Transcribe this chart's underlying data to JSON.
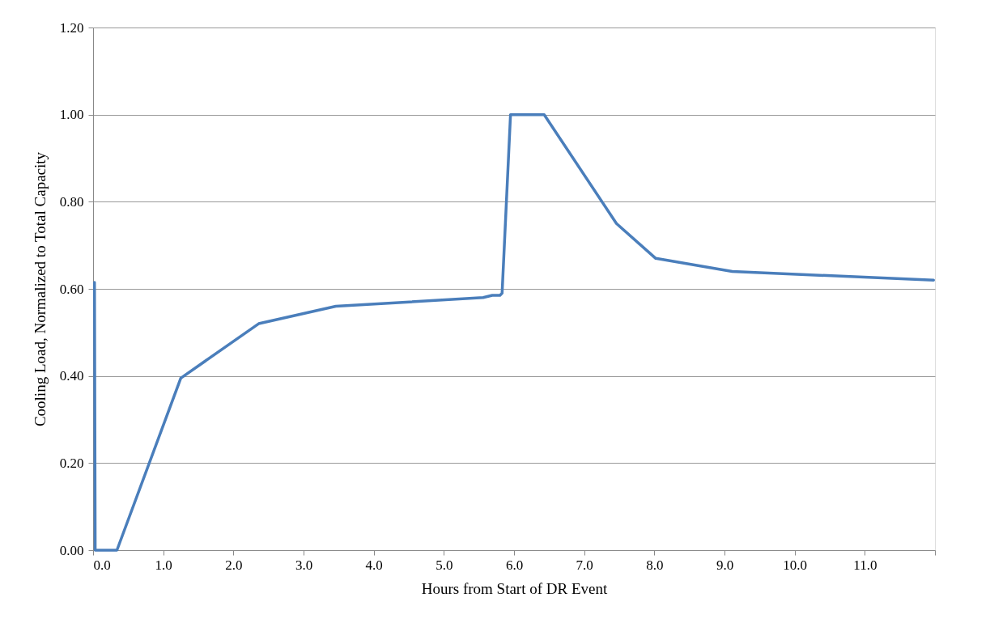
{
  "chart_data": {
    "type": "line",
    "xlabel": "Hours from Start of DR Event",
    "ylabel": "Cooling Load, Normalized to Total Capacity",
    "x": [
      0.02,
      0.03,
      0.1,
      0.2,
      0.34,
      1.25,
      2.36,
      3.46,
      5.56,
      5.69,
      5.8,
      5.83,
      5.95,
      6.0,
      6.05,
      6.43,
      7.46,
      8.02,
      9.11,
      11.98
    ],
    "series": [
      {
        "color": "#4a7ebb",
        "values": [
          0.615,
          0,
          0,
          0,
          0,
          0.395,
          0.52,
          0.56,
          0.58,
          0.585,
          0.585,
          0.59,
          1.0,
          1.0,
          1.0,
          1.0,
          0.75,
          0.67,
          0.64,
          0.62
        ]
      }
    ],
    "xlim": [
      0,
      12
    ],
    "ylim": [
      0,
      1.2
    ],
    "xticks": [
      {
        "value": 0,
        "label": "0.0"
      },
      {
        "value": 1,
        "label": "1.0"
      },
      {
        "value": 2,
        "label": "2.0"
      },
      {
        "value": 3,
        "label": "3.0"
      },
      {
        "value": 4,
        "label": "4.0"
      },
      {
        "value": 5,
        "label": "5.0"
      },
      {
        "value": 6,
        "label": "6.0"
      },
      {
        "value": 7,
        "label": "7.0"
      },
      {
        "value": 8,
        "label": "8.0"
      },
      {
        "value": 9,
        "label": "9.0"
      },
      {
        "value": 10,
        "label": "10.0"
      },
      {
        "value": 11,
        "label": "11.0"
      },
      {
        "value": 12,
        "label": null
      }
    ],
    "yticks": [
      {
        "value": 0,
        "label": "0.00"
      },
      {
        "value": 0.2,
        "label": "0.20"
      },
      {
        "value": 0.4,
        "label": "0.40"
      },
      {
        "value": 0.6,
        "label": "0.60"
      },
      {
        "value": 0.8,
        "label": "0.80"
      },
      {
        "value": 1.0,
        "label": "1.00"
      },
      {
        "value": 1.2,
        "label": "1.20"
      }
    ],
    "grid": "y",
    "marker": "none",
    "line_style": "solid"
  }
}
